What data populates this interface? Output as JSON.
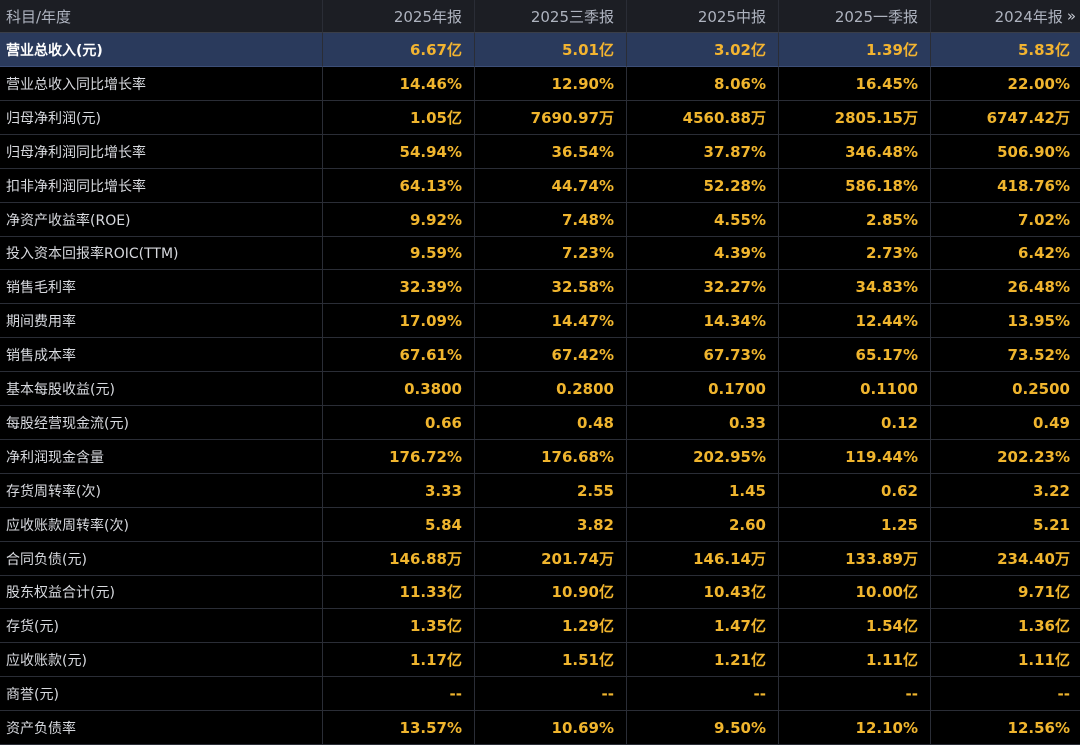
{
  "header": {
    "label": "科目/年度",
    "periods": [
      "2025年报",
      "2025三季报",
      "2025中报",
      "2025一季报",
      "2024年报"
    ],
    "more_icon": "double-chevron-right-icon"
  },
  "rows": [
    {
      "label": "营业总收入(元)",
      "values": [
        "6.67亿",
        "5.01亿",
        "3.02亿",
        "1.39亿",
        "5.83亿"
      ]
    },
    {
      "label": "营业总收入同比增长率",
      "values": [
        "14.46%",
        "12.90%",
        "8.06%",
        "16.45%",
        "22.00%"
      ]
    },
    {
      "label": "归母净利润(元)",
      "values": [
        "1.05亿",
        "7690.97万",
        "4560.88万",
        "2805.15万",
        "6747.42万"
      ]
    },
    {
      "label": "归母净利润同比增长率",
      "values": [
        "54.94%",
        "36.54%",
        "37.87%",
        "346.48%",
        "506.90%"
      ]
    },
    {
      "label": "扣非净利润同比增长率",
      "values": [
        "64.13%",
        "44.74%",
        "52.28%",
        "586.18%",
        "418.76%"
      ]
    },
    {
      "label": "净资产收益率(ROE)",
      "values": [
        "9.92%",
        "7.48%",
        "4.55%",
        "2.85%",
        "7.02%"
      ]
    },
    {
      "label": "投入资本回报率ROIC(TTM)",
      "values": [
        "9.59%",
        "7.23%",
        "4.39%",
        "2.73%",
        "6.42%"
      ]
    },
    {
      "label": "销售毛利率",
      "values": [
        "32.39%",
        "32.58%",
        "32.27%",
        "34.83%",
        "26.48%"
      ]
    },
    {
      "label": "期间费用率",
      "values": [
        "17.09%",
        "14.47%",
        "14.34%",
        "12.44%",
        "13.95%"
      ]
    },
    {
      "label": "销售成本率",
      "values": [
        "67.61%",
        "67.42%",
        "67.73%",
        "65.17%",
        "73.52%"
      ]
    },
    {
      "label": "基本每股收益(元)",
      "values": [
        "0.3800",
        "0.2800",
        "0.1700",
        "0.1100",
        "0.2500"
      ]
    },
    {
      "label": "每股经营现金流(元)",
      "values": [
        "0.66",
        "0.48",
        "0.33",
        "0.12",
        "0.49"
      ]
    },
    {
      "label": "净利润现金含量",
      "values": [
        "176.72%",
        "176.68%",
        "202.95%",
        "119.44%",
        "202.23%"
      ]
    },
    {
      "label": "存货周转率(次)",
      "values": [
        "3.33",
        "2.55",
        "1.45",
        "0.62",
        "3.22"
      ]
    },
    {
      "label": "应收账款周转率(次)",
      "values": [
        "5.84",
        "3.82",
        "2.60",
        "1.25",
        "5.21"
      ]
    },
    {
      "label": "合同负债(元)",
      "values": [
        "146.88万",
        "201.74万",
        "146.14万",
        "133.89万",
        "234.40万"
      ]
    },
    {
      "label": "股东权益合计(元)",
      "values": [
        "11.33亿",
        "10.90亿",
        "10.43亿",
        "10.00亿",
        "9.71亿"
      ]
    },
    {
      "label": "存货(元)",
      "values": [
        "1.35亿",
        "1.29亿",
        "1.47亿",
        "1.54亿",
        "1.36亿"
      ]
    },
    {
      "label": "应收账款(元)",
      "values": [
        "1.17亿",
        "1.51亿",
        "1.21亿",
        "1.11亿",
        "1.11亿"
      ]
    },
    {
      "label": "商誉(元)",
      "values": [
        "--",
        "--",
        "--",
        "--",
        "--"
      ]
    },
    {
      "label": "资产负债率",
      "values": [
        "13.57%",
        "10.69%",
        "9.50%",
        "12.10%",
        "12.56%"
      ]
    }
  ],
  "colors": {
    "background": "#000000",
    "header_bg": "#1c1e24",
    "highlight_bg": "#2a3a5c",
    "value_text": "#f0b52e",
    "label_text": "#d7d9de"
  }
}
